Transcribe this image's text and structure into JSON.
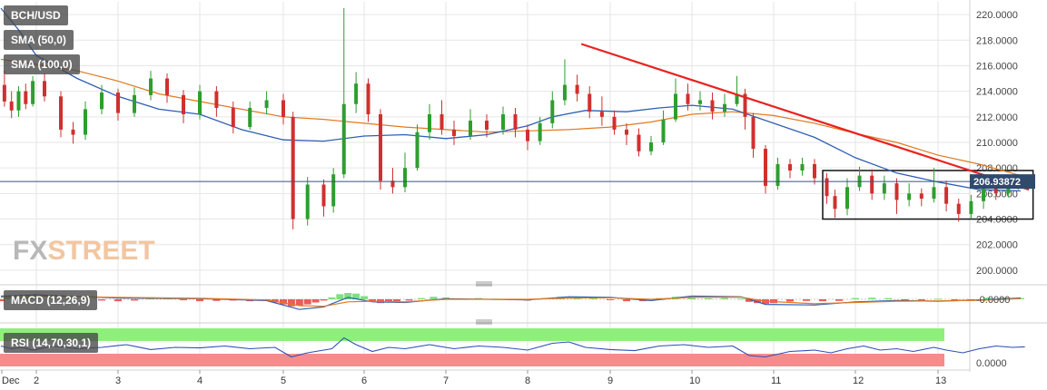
{
  "header": {
    "symbol": "BCH/USD",
    "indicators": [
      "SMA (50,0)",
      "SMA (100,0)"
    ]
  },
  "watermark": {
    "part1": "FX",
    "part2": "STREET"
  },
  "price_tag": "206.93872",
  "macd_label": "MACD (12,26,9)",
  "rsi_label": "RSI (14,70,30,1)",
  "macd_tick": "-0.0000",
  "rsi_tick": "0.0000",
  "colors": {
    "up": "#2e9e2e",
    "down": "#d0302f",
    "sma50": "#2e5fb5",
    "sma100": "#e07a1f",
    "trendline": "#e8231f",
    "rsi_over": "#8eef7a",
    "rsi_under": "#f58c8c",
    "grid": "#e6e6e6"
  },
  "chart_data": {
    "type": "candlestick",
    "ylim": [
      199.0,
      221.0
    ],
    "y_ticks": [
      "200.0000",
      "202.0000",
      "204.0000",
      "206.0000",
      "208.0000",
      "210.0000",
      "212.0000",
      "214.0000",
      "216.0000",
      "218.0000",
      "220.0000"
    ],
    "x_ticks": [
      "Dec",
      "2",
      "3",
      "4",
      "5",
      "6",
      "7",
      "8",
      "9",
      "10",
      "11",
      "12",
      "13"
    ],
    "last_price": 206.93872,
    "sma50": [
      [
        0,
        220.5
      ],
      [
        0.5,
        218.8
      ],
      [
        1.0,
        216.8
      ],
      [
        1.5,
        215.0
      ],
      [
        2.0,
        213.6
      ],
      [
        2.5,
        212.6
      ],
      [
        3.0,
        212.2
      ],
      [
        3.5,
        211.0
      ],
      [
        4.0,
        210.2
      ],
      [
        4.5,
        210.1
      ],
      [
        5.0,
        210.5
      ],
      [
        5.5,
        210.6
      ],
      [
        6.0,
        210.3
      ],
      [
        6.5,
        210.6
      ],
      [
        7.0,
        211.3
      ],
      [
        7.3,
        212.0
      ],
      [
        7.7,
        212.5
      ],
      [
        8.2,
        212.4
      ],
      [
        8.6,
        212.7
      ],
      [
        9.0,
        212.9
      ],
      [
        9.5,
        212.6
      ],
      [
        10.0,
        211.5
      ],
      [
        10.5,
        210.4
      ],
      [
        11.0,
        208.8
      ],
      [
        11.5,
        207.6
      ],
      [
        12.0,
        206.9
      ],
      [
        12.5,
        206.3
      ],
      [
        13.0,
        206.2
      ]
    ],
    "sma100": [
      [
        0,
        216.5
      ],
      [
        0.5,
        216.3
      ],
      [
        1.0,
        216.1
      ],
      [
        1.5,
        215.6
      ],
      [
        2.0,
        214.8
      ],
      [
        2.5,
        213.8
      ],
      [
        3.0,
        213.2
      ],
      [
        3.5,
        212.6
      ],
      [
        4.0,
        212.0
      ],
      [
        4.5,
        211.8
      ],
      [
        5.0,
        211.5
      ],
      [
        5.5,
        211.2
      ],
      [
        6.0,
        211.0
      ],
      [
        6.5,
        210.8
      ],
      [
        7.0,
        210.9
      ],
      [
        7.5,
        211.0
      ],
      [
        8.0,
        211.2
      ],
      [
        8.5,
        211.6
      ],
      [
        9.0,
        212.2
      ],
      [
        9.5,
        212.4
      ],
      [
        10.0,
        212.1
      ],
      [
        10.5,
        211.5
      ],
      [
        11.0,
        210.7
      ],
      [
        11.5,
        210.0
      ],
      [
        12.0,
        209.0
      ],
      [
        12.5,
        208.3
      ],
      [
        13.0,
        207.4
      ]
    ],
    "trendline": {
      "from": [
        7.65,
        217.7
      ],
      "to": [
        13.1,
        206.3
      ]
    },
    "range_box": {
      "x0": 10.6,
      "x1": 13.15,
      "y0": 204.0,
      "y1": 207.8
    },
    "candles": [
      [
        0.1,
        214.5,
        213.2,
        215.6,
        212.8
      ],
      [
        0.3,
        213.2,
        212.5,
        214.0,
        211.9
      ],
      [
        0.5,
        212.5,
        214.0,
        214.4,
        212.0
      ],
      [
        0.7,
        214.0,
        213.0,
        214.6,
        212.6
      ],
      [
        0.9,
        213.0,
        214.8,
        215.2,
        212.8
      ],
      [
        1.1,
        214.8,
        213.6,
        215.4,
        213.2
      ],
      [
        1.3,
        213.6,
        211.0,
        214.0,
        210.4
      ],
      [
        1.45,
        211.0,
        210.6,
        211.6,
        209.9
      ],
      [
        1.6,
        210.6,
        212.6,
        213.2,
        210.2
      ],
      [
        1.8,
        212.6,
        213.9,
        214.5,
        212.2
      ],
      [
        2.0,
        213.9,
        212.3,
        214.2,
        211.7
      ],
      [
        2.2,
        212.3,
        213.7,
        214.3,
        212.0
      ],
      [
        2.4,
        213.7,
        215.0,
        215.6,
        213.3
      ],
      [
        2.6,
        215.0,
        213.7,
        215.4,
        213.1
      ],
      [
        2.8,
        213.7,
        212.2,
        214.1,
        211.5
      ],
      [
        3.0,
        212.2,
        214.0,
        214.5,
        211.8
      ],
      [
        3.2,
        214.0,
        212.7,
        214.4,
        212.0
      ],
      [
        3.4,
        212.7,
        211.2,
        213.2,
        210.7
      ],
      [
        3.6,
        211.2,
        212.7,
        213.2,
        211.0
      ],
      [
        3.8,
        212.7,
        213.3,
        214.0,
        212.2
      ],
      [
        4.0,
        213.3,
        212.0,
        213.8,
        211.4
      ],
      [
        4.12,
        212.0,
        204.0,
        212.4,
        203.2
      ],
      [
        4.3,
        204.0,
        206.7,
        207.3,
        203.5
      ],
      [
        4.5,
        206.7,
        205.0,
        207.1,
        204.2
      ],
      [
        4.62,
        205.0,
        207.5,
        208.0,
        204.5
      ],
      [
        4.75,
        207.5,
        213.0,
        220.5,
        207.2
      ],
      [
        4.9,
        213.0,
        214.6,
        215.5,
        212.3
      ],
      [
        5.05,
        214.6,
        212.2,
        215.0,
        211.6
      ],
      [
        5.2,
        212.2,
        207.0,
        212.6,
        206.3
      ],
      [
        5.35,
        207.0,
        206.5,
        208.0,
        206.0
      ],
      [
        5.5,
        206.5,
        208.0,
        209.2,
        206.1
      ],
      [
        5.65,
        208.0,
        210.8,
        211.4,
        207.8
      ],
      [
        5.8,
        210.8,
        212.2,
        213.0,
        210.2
      ],
      [
        5.95,
        212.2,
        211.0,
        213.3,
        210.6
      ],
      [
        6.1,
        211.0,
        210.5,
        211.7,
        209.8
      ],
      [
        6.3,
        210.5,
        211.7,
        212.6,
        210.2
      ],
      [
        6.5,
        211.7,
        211.0,
        212.2,
        210.4
      ],
      [
        6.7,
        211.0,
        212.2,
        212.8,
        210.6
      ],
      [
        6.85,
        212.2,
        211.0,
        212.7,
        210.4
      ],
      [
        7.0,
        211.0,
        210.1,
        211.4,
        209.4
      ],
      [
        7.15,
        210.1,
        211.5,
        212.0,
        209.8
      ],
      [
        7.3,
        211.5,
        213.3,
        214.0,
        211.1
      ],
      [
        7.45,
        213.3,
        214.5,
        216.5,
        212.9
      ],
      [
        7.6,
        214.5,
        213.8,
        215.3,
        213.2
      ],
      [
        7.75,
        213.8,
        212.4,
        214.4,
        211.9
      ],
      [
        7.9,
        212.4,
        212.0,
        213.6,
        211.3
      ],
      [
        8.05,
        212.0,
        211.0,
        212.5,
        210.6
      ],
      [
        8.2,
        211.0,
        210.6,
        211.5,
        209.8
      ],
      [
        8.35,
        210.6,
        209.3,
        211.1,
        208.9
      ],
      [
        8.5,
        209.3,
        210.0,
        210.5,
        209.0
      ],
      [
        8.65,
        210.0,
        211.8,
        212.5,
        209.8
      ],
      [
        8.8,
        211.8,
        213.8,
        215.0,
        211.6
      ],
      [
        8.95,
        213.8,
        213.0,
        214.6,
        212.5
      ],
      [
        9.1,
        213.0,
        213.3,
        214.0,
        212.5
      ],
      [
        9.25,
        213.3,
        212.4,
        213.9,
        211.8
      ],
      [
        9.4,
        212.4,
        213.0,
        213.8,
        212.0
      ],
      [
        9.55,
        213.0,
        213.8,
        215.2,
        212.8
      ],
      [
        9.65,
        213.8,
        212.0,
        214.2,
        211.0
      ],
      [
        9.75,
        212.0,
        209.5,
        212.3,
        208.8
      ],
      [
        9.9,
        209.5,
        206.6,
        209.8,
        206.0
      ],
      [
        10.05,
        206.6,
        208.3,
        208.8,
        206.3
      ],
      [
        10.2,
        208.3,
        207.8,
        208.7,
        207.2
      ],
      [
        10.35,
        207.8,
        208.3,
        208.8,
        207.4
      ],
      [
        10.5,
        208.3,
        207.2,
        208.7,
        206.7
      ],
      [
        10.65,
        207.2,
        205.8,
        207.6,
        205.2
      ],
      [
        10.75,
        205.8,
        204.8,
        206.3,
        204.1
      ],
      [
        10.9,
        204.8,
        206.5,
        207.2,
        204.3
      ],
      [
        11.05,
        206.5,
        207.4,
        208.1,
        206.2
      ],
      [
        11.2,
        207.4,
        206.0,
        207.9,
        205.5
      ],
      [
        11.35,
        206.0,
        206.8,
        207.4,
        205.5
      ],
      [
        11.5,
        206.8,
        205.5,
        207.2,
        204.4
      ],
      [
        11.65,
        205.5,
        206.0,
        206.8,
        205.0
      ],
      [
        11.8,
        206.0,
        205.6,
        206.4,
        205.0
      ],
      [
        11.95,
        205.6,
        206.5,
        208.0,
        205.3
      ],
      [
        12.1,
        206.5,
        205.2,
        207.0,
        204.6
      ],
      [
        12.25,
        205.2,
        204.4,
        205.6,
        203.8
      ],
      [
        12.4,
        204.4,
        205.4,
        205.9,
        204.0
      ],
      [
        12.55,
        205.4,
        206.8,
        207.5,
        204.8
      ],
      [
        12.7,
        206.8,
        206.0,
        207.4,
        205.5
      ],
      [
        12.85,
        206.0,
        206.7,
        207.4,
        205.7
      ],
      [
        12.97,
        206.7,
        206.9,
        207.2,
        206.3
      ],
      [
        13.05,
        206.9,
        206.94,
        207.1,
        206.6
      ]
    ],
    "macd_hist": [
      [
        0.0,
        -0.3
      ],
      [
        0.2,
        0.5
      ],
      [
        0.4,
        0.4
      ],
      [
        0.6,
        0.3
      ],
      [
        0.8,
        0.4
      ],
      [
        1.0,
        0.3
      ],
      [
        1.2,
        0.3
      ],
      [
        1.4,
        0.45
      ],
      [
        1.6,
        0.2
      ],
      [
        1.8,
        -0.2
      ],
      [
        2.0,
        -0.3
      ],
      [
        2.2,
        -0.2
      ],
      [
        2.4,
        0.3
      ],
      [
        2.6,
        0.2
      ],
      [
        2.8,
        -0.15
      ],
      [
        3.0,
        -0.3
      ],
      [
        3.2,
        -0.25
      ],
      [
        3.4,
        -0.2
      ],
      [
        3.6,
        -0.3
      ],
      [
        3.8,
        -0.2
      ],
      [
        3.9,
        -0.5
      ],
      [
        4.0,
        -0.8
      ],
      [
        4.1,
        -1.1
      ],
      [
        4.2,
        -1.0
      ],
      [
        4.3,
        -0.8
      ],
      [
        4.4,
        -0.5
      ],
      [
        4.5,
        -0.2
      ],
      [
        4.6,
        0.3
      ],
      [
        4.7,
        0.8
      ],
      [
        4.8,
        1.0
      ],
      [
        4.9,
        0.9
      ],
      [
        5.0,
        0.5
      ],
      [
        5.1,
        -0.3
      ],
      [
        5.2,
        -0.6
      ],
      [
        5.3,
        -0.5
      ],
      [
        5.4,
        -0.3
      ],
      [
        5.55,
        -0.2
      ],
      [
        5.7,
        0.2
      ],
      [
        5.85,
        0.4
      ],
      [
        6.0,
        0.3
      ],
      [
        6.2,
        0.15
      ],
      [
        6.4,
        0.2
      ],
      [
        6.6,
        0.1
      ],
      [
        6.8,
        -0.1
      ],
      [
        7.0,
        -0.2
      ],
      [
        7.2,
        0.2
      ],
      [
        7.4,
        0.4
      ],
      [
        7.6,
        0.4
      ],
      [
        7.8,
        0.2
      ],
      [
        8.0,
        -0.1
      ],
      [
        8.2,
        -0.3
      ],
      [
        8.4,
        -0.3
      ],
      [
        8.6,
        0.2
      ],
      [
        8.8,
        0.4
      ],
      [
        9.0,
        0.25
      ],
      [
        9.2,
        0.15
      ],
      [
        9.4,
        0.2
      ],
      [
        9.6,
        0.1
      ],
      [
        9.7,
        -0.4
      ],
      [
        9.8,
        -0.6
      ],
      [
        9.9,
        -0.7
      ],
      [
        10.0,
        -0.6
      ],
      [
        10.2,
        -0.35
      ],
      [
        10.4,
        -0.25
      ],
      [
        10.6,
        -0.3
      ],
      [
        10.8,
        -0.25
      ],
      [
        11.0,
        0.2
      ],
      [
        11.2,
        0.25
      ],
      [
        11.4,
        0.2
      ],
      [
        11.6,
        -0.15
      ],
      [
        11.8,
        -0.2
      ],
      [
        12.0,
        0.1
      ],
      [
        12.2,
        -0.15
      ],
      [
        12.4,
        -0.1
      ],
      [
        12.6,
        0.25
      ],
      [
        12.8,
        0.3
      ],
      [
        13.0,
        0.2
      ]
    ],
    "macd_line": [
      [
        0,
        0.5
      ],
      [
        1,
        0.7
      ],
      [
        2,
        0.2
      ],
      [
        3,
        0.1
      ],
      [
        3.8,
        -0.2
      ],
      [
        4.2,
        -1.6
      ],
      [
        4.5,
        -1.2
      ],
      [
        4.8,
        0.3
      ],
      [
        5.1,
        -0.4
      ],
      [
        5.5,
        -0.5
      ],
      [
        6,
        0.1
      ],
      [
        7,
        -0.1
      ],
      [
        7.5,
        0.4
      ],
      [
        8,
        0.3
      ],
      [
        8.5,
        -0.2
      ],
      [
        9,
        0.5
      ],
      [
        9.6,
        0.4
      ],
      [
        9.9,
        -0.8
      ],
      [
        10.5,
        -0.9
      ],
      [
        11,
        -0.4
      ],
      [
        11.5,
        -0.2
      ],
      [
        12,
        -0.3
      ],
      [
        12.5,
        -0.1
      ],
      [
        13,
        0.2
      ]
    ],
    "macd_signal": [
      [
        0,
        0.3
      ],
      [
        1,
        0.5
      ],
      [
        2,
        0.3
      ],
      [
        3,
        0.15
      ],
      [
        3.8,
        -0.1
      ],
      [
        4.2,
        -1.0
      ],
      [
        4.5,
        -1.1
      ],
      [
        4.8,
        -0.4
      ],
      [
        5.1,
        -0.3
      ],
      [
        5.5,
        -0.4
      ],
      [
        6,
        0.0
      ],
      [
        7,
        0.0
      ],
      [
        7.5,
        0.2
      ],
      [
        8,
        0.25
      ],
      [
        8.5,
        0.0
      ],
      [
        9,
        0.3
      ],
      [
        9.6,
        0.35
      ],
      [
        9.9,
        -0.3
      ],
      [
        10.5,
        -0.7
      ],
      [
        11,
        -0.5
      ],
      [
        11.5,
        -0.3
      ],
      [
        12,
        -0.25
      ],
      [
        12.5,
        -0.15
      ],
      [
        13,
        0.1
      ]
    ],
    "rsi": [
      [
        0,
        0.55
      ],
      [
        0.3,
        0.45
      ],
      [
        0.6,
        0.5
      ],
      [
        0.9,
        0.4
      ],
      [
        1.2,
        0.55
      ],
      [
        1.5,
        0.45
      ],
      [
        1.8,
        0.5
      ],
      [
        2.1,
        0.6
      ],
      [
        2.4,
        0.42
      ],
      [
        2.7,
        0.5
      ],
      [
        3.0,
        0.48
      ],
      [
        3.3,
        0.55
      ],
      [
        3.6,
        0.45
      ],
      [
        3.9,
        0.5
      ],
      [
        4.1,
        0.15
      ],
      [
        4.3,
        0.3
      ],
      [
        4.6,
        0.45
      ],
      [
        4.75,
        0.85
      ],
      [
        4.9,
        0.6
      ],
      [
        5.1,
        0.35
      ],
      [
        5.3,
        0.5
      ],
      [
        5.5,
        0.45
      ],
      [
        5.8,
        0.6
      ],
      [
        6.1,
        0.45
      ],
      [
        6.4,
        0.55
      ],
      [
        6.7,
        0.5
      ],
      [
        7.0,
        0.4
      ],
      [
        7.3,
        0.65
      ],
      [
        7.5,
        0.7
      ],
      [
        7.7,
        0.5
      ],
      [
        8.0,
        0.42
      ],
      [
        8.3,
        0.38
      ],
      [
        8.6,
        0.55
      ],
      [
        8.9,
        0.6
      ],
      [
        9.2,
        0.5
      ],
      [
        9.5,
        0.55
      ],
      [
        9.7,
        0.2
      ],
      [
        9.9,
        0.15
      ],
      [
        10.2,
        0.35
      ],
      [
        10.5,
        0.4
      ],
      [
        10.7,
        0.3
      ],
      [
        10.9,
        0.45
      ],
      [
        11.1,
        0.55
      ],
      [
        11.3,
        0.4
      ],
      [
        11.5,
        0.45
      ],
      [
        11.7,
        0.35
      ],
      [
        11.95,
        0.5
      ],
      [
        12.1,
        0.4
      ],
      [
        12.3,
        0.3
      ],
      [
        12.5,
        0.45
      ],
      [
        12.7,
        0.55
      ],
      [
        12.9,
        0.5
      ],
      [
        13.05,
        0.52
      ]
    ]
  }
}
